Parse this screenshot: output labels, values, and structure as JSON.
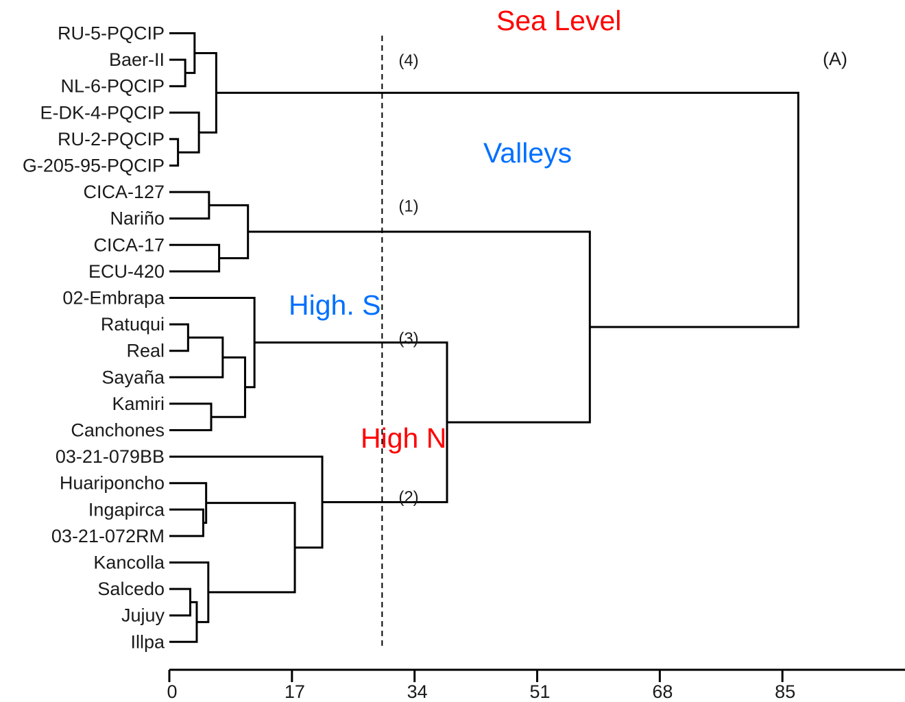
{
  "leaves": [
    "RU-5-PQCIP",
    "Baer-II",
    "NL-6-PQCIP",
    "E-DK-4-PQCIP",
    "RU-2-PQCIP",
    "G-205-95-PQCIP",
    "CICA-127",
    "Nariño",
    "CICA-17",
    "ECU-420",
    "02-Embrapa",
    "Ratuqui",
    "Real",
    "Sayaña",
    "Kamiri",
    "Canchones",
    "03-21-079BB",
    "Huariponcho",
    "Ingapirca",
    "03-21-072RM",
    "Kancolla",
    "Salcedo",
    "Jujuy",
    "Illpa"
  ],
  "merges": [
    {
      "a": [
        "leaf",
        1
      ],
      "b": [
        "leaf",
        2
      ],
      "h": 2.2
    },
    {
      "a": [
        "leaf",
        0
      ],
      "b": [
        "node",
        0
      ],
      "h": 3.5
    },
    {
      "a": [
        "leaf",
        4
      ],
      "b": [
        "leaf",
        5
      ],
      "h": 1.2
    },
    {
      "a": [
        "leaf",
        3
      ],
      "b": [
        "node",
        2
      ],
      "h": 4.1
    },
    {
      "a": [
        "node",
        1
      ],
      "b": [
        "node",
        3
      ],
      "h": 6.5
    },
    {
      "a": [
        "leaf",
        6
      ],
      "b": [
        "leaf",
        7
      ],
      "h": 5.5
    },
    {
      "a": [
        "leaf",
        8
      ],
      "b": [
        "leaf",
        9
      ],
      "h": 6.9
    },
    {
      "a": [
        "node",
        5
      ],
      "b": [
        "node",
        6
      ],
      "h": 10.9
    },
    {
      "a": [
        "leaf",
        11
      ],
      "b": [
        "leaf",
        12
      ],
      "h": 2.6
    },
    {
      "a": [
        "node",
        8
      ],
      "b": [
        "leaf",
        13
      ],
      "h": 7.4
    },
    {
      "a": [
        "leaf",
        14
      ],
      "b": [
        "leaf",
        15
      ],
      "h": 5.8
    },
    {
      "a": [
        "node",
        9
      ],
      "b": [
        "node",
        10
      ],
      "h": 10.5
    },
    {
      "a": [
        "leaf",
        10
      ],
      "b": [
        "node",
        11
      ],
      "h": 11.8
    },
    {
      "a": [
        "leaf",
        18
      ],
      "b": [
        "leaf",
        19
      ],
      "h": 4.7
    },
    {
      "a": [
        "leaf",
        17
      ],
      "b": [
        "node",
        13
      ],
      "h": 5.1
    },
    {
      "a": [
        "leaf",
        21
      ],
      "b": [
        "leaf",
        22
      ],
      "h": 2.9
    },
    {
      "a": [
        "node",
        15
      ],
      "b": [
        "leaf",
        23
      ],
      "h": 3.8
    },
    {
      "a": [
        "leaf",
        20
      ],
      "b": [
        "node",
        16
      ],
      "h": 5.4
    },
    {
      "a": [
        "node",
        14
      ],
      "b": [
        "node",
        17
      ],
      "h": 17.4
    },
    {
      "a": [
        "leaf",
        16
      ],
      "b": [
        "node",
        18
      ],
      "h": 21.2
    },
    {
      "a": [
        "node",
        12
      ],
      "b": [
        "node",
        19
      ],
      "h": 38.5
    },
    {
      "a": [
        "node",
        7
      ],
      "b": [
        "node",
        20
      ],
      "h": 58.3
    },
    {
      "a": [
        "node",
        4
      ],
      "b": [
        "node",
        21
      ],
      "h": 87.2
    }
  ],
  "axis": {
    "ticks": [
      0,
      17,
      34,
      51,
      68,
      85
    ],
    "tick_labels": [
      "0",
      "17",
      "34",
      "51",
      "68",
      "85"
    ],
    "range": [
      0,
      100
    ]
  },
  "cut_height": 29.5,
  "groups": [
    {
      "label": "(4)",
      "leaf": 1
    },
    {
      "label": "(1)",
      "leaf": 6.5
    },
    {
      "label": "(3)",
      "leaf": 11.5
    },
    {
      "label": "(2)",
      "leaf": 17.5
    }
  ],
  "annotations": [
    {
      "text": "Sea Level",
      "color": "#ff0000"
    },
    {
      "text": "Valleys",
      "color": "#0070ff"
    },
    {
      "text": "High. S",
      "color": "#0070ff"
    },
    {
      "text": "High N",
      "color": "#ff0000"
    }
  ],
  "panel_label": "(A)"
}
